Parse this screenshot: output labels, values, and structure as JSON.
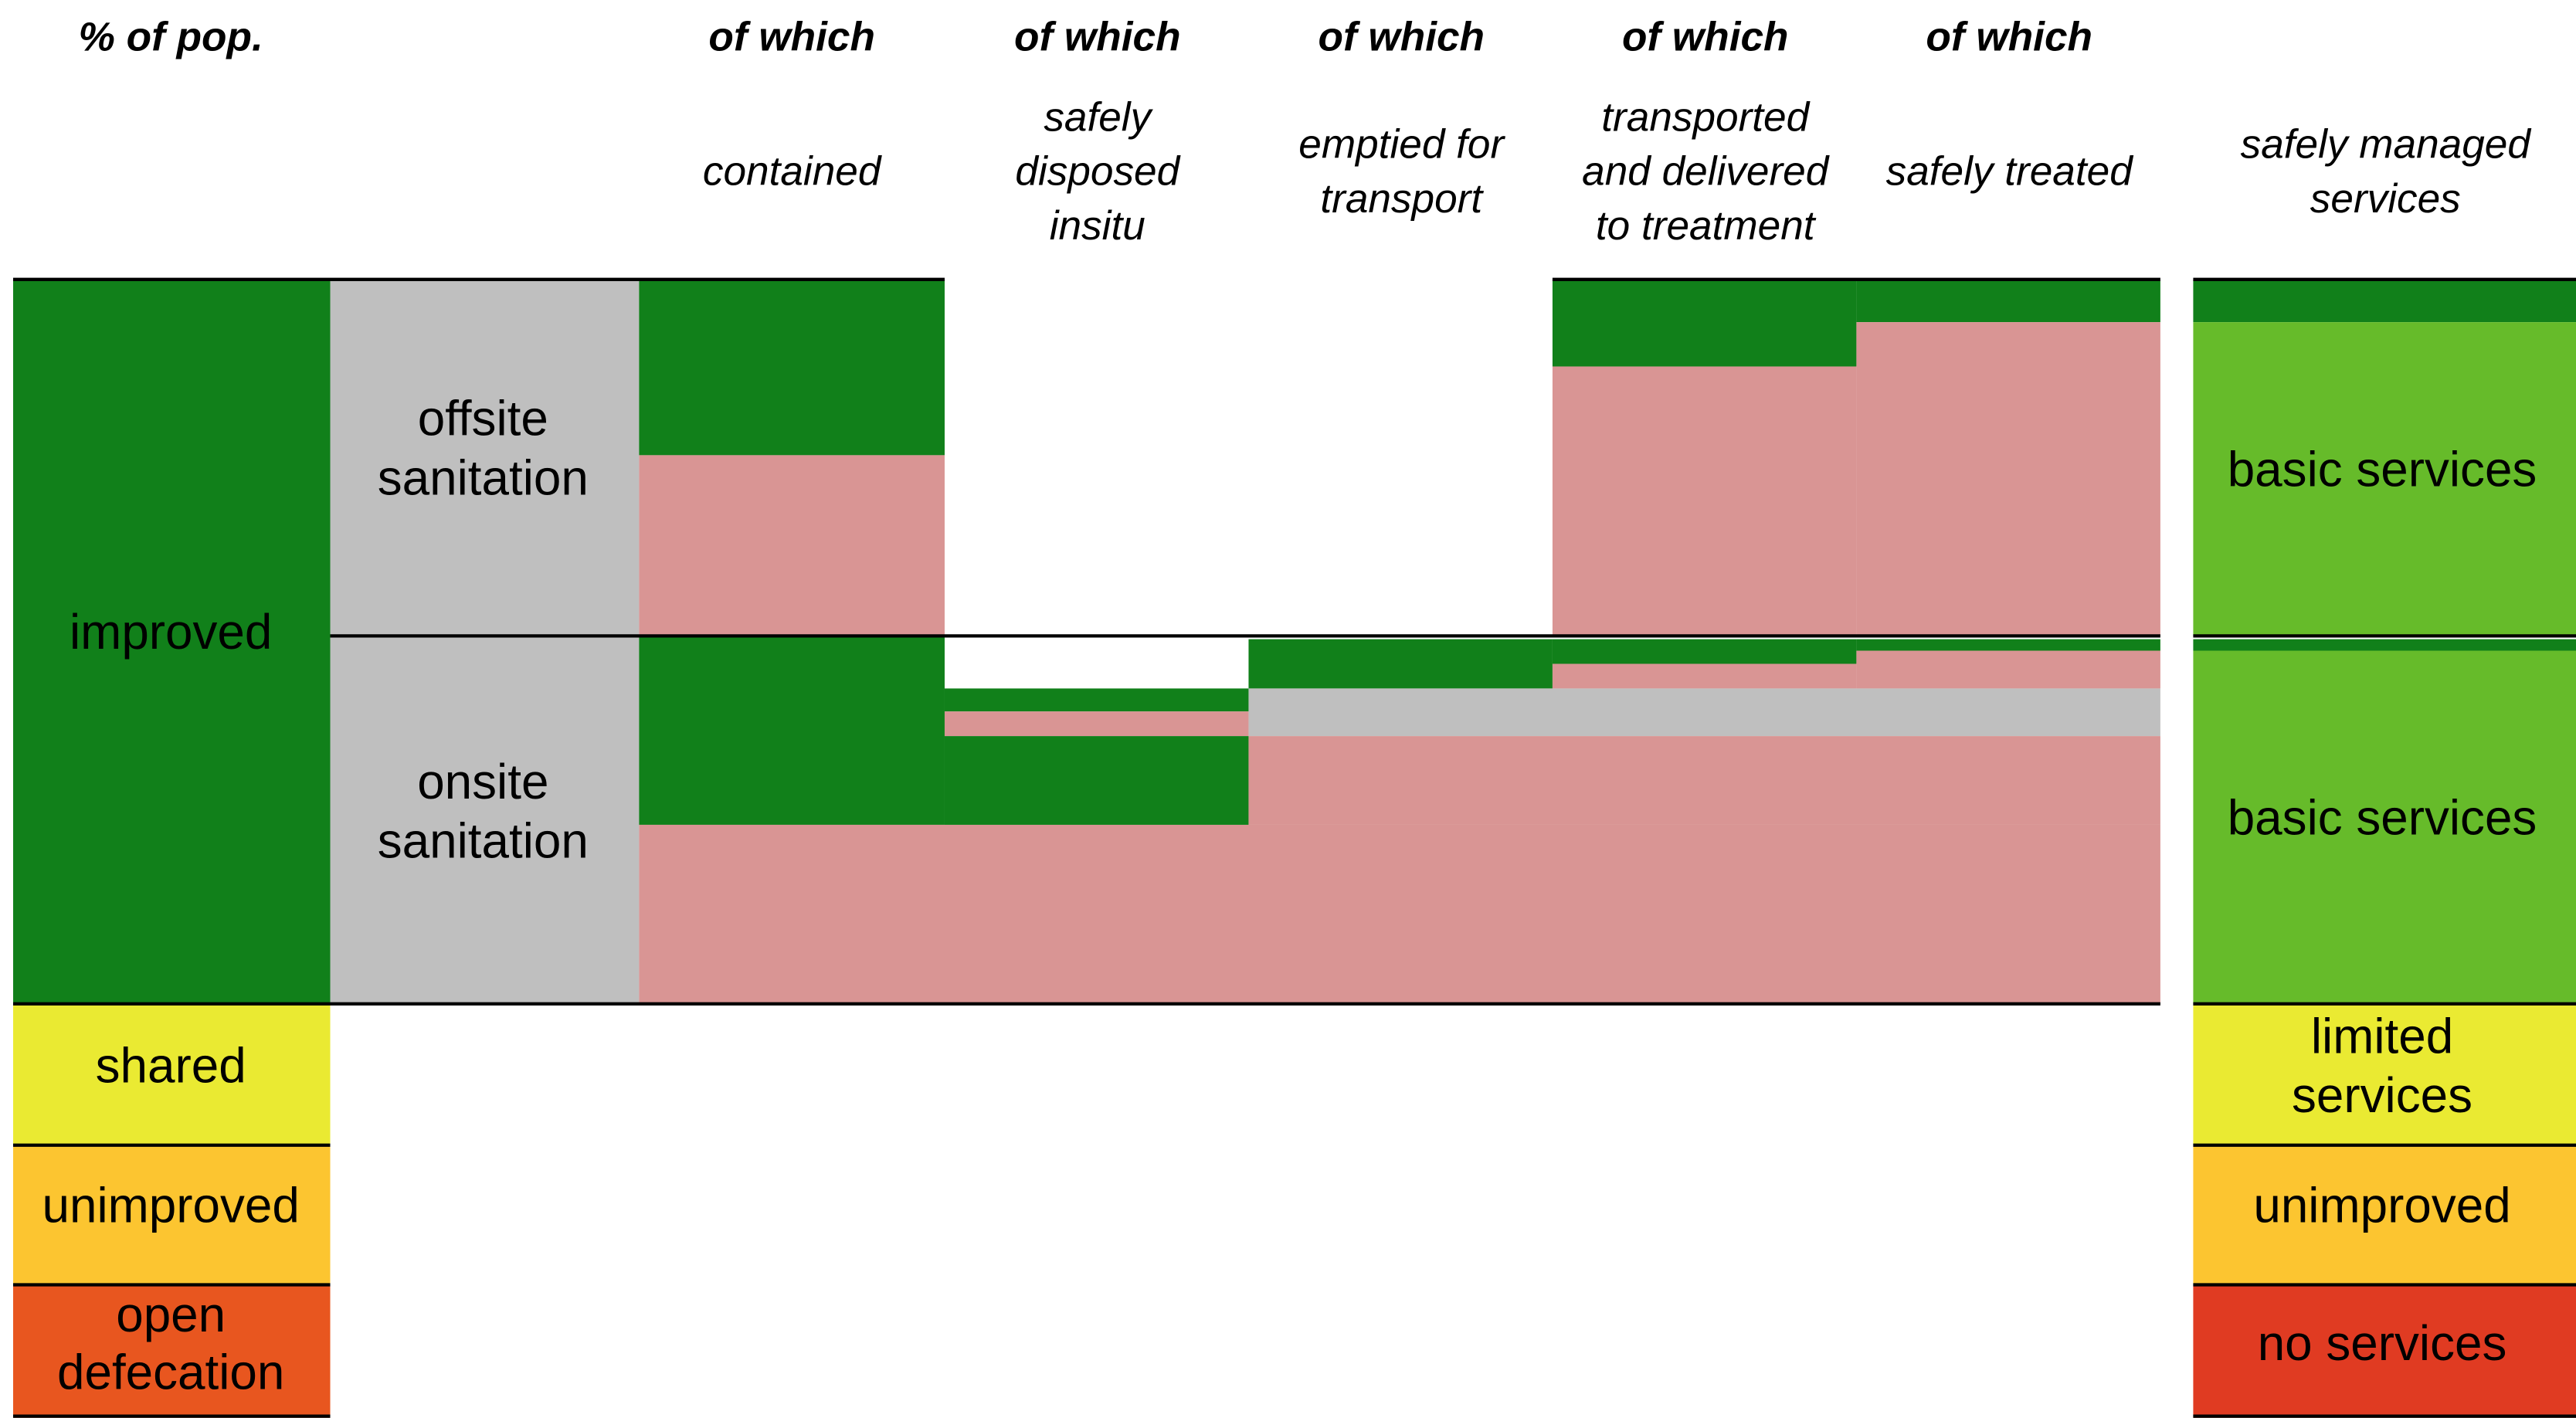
{
  "header": {
    "left": "% of pop.",
    "columns": [
      {
        "top": "of which",
        "lines": [
          "contained"
        ]
      },
      {
        "top": "of which",
        "lines": [
          "safely",
          "disposed",
          "insitu"
        ]
      },
      {
        "top": "of which",
        "lines": [
          "emptied for",
          "transport"
        ]
      },
      {
        "top": "of which",
        "lines": [
          "transported",
          "and delivered",
          "to treatment"
        ]
      },
      {
        "top": "of which",
        "lines": [
          "safely treated"
        ]
      }
    ],
    "right": [
      "safely managed",
      "services"
    ]
  },
  "left_rows": [
    [
      "improved"
    ],
    [
      "shared"
    ],
    [
      "unimproved"
    ],
    [
      "open",
      "defecation"
    ]
  ],
  "sanitation_rows": [
    [
      "offsite",
      "sanitation"
    ],
    [
      "onsite",
      "sanitation"
    ]
  ],
  "right_rows": [
    [
      "basic services"
    ],
    [
      "basic services"
    ],
    [
      "limited",
      "services"
    ],
    [
      "unimproved"
    ],
    [
      "no services"
    ]
  ]
}
